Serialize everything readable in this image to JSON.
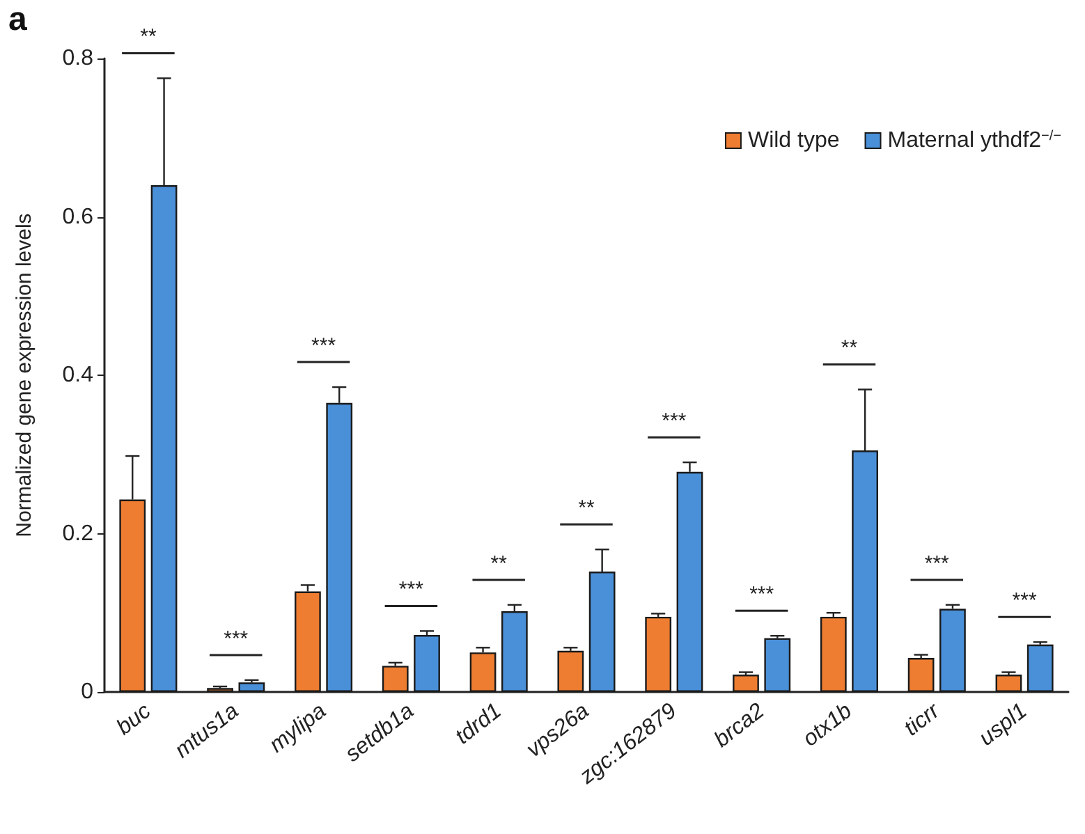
{
  "chart_data": {
    "type": "bar",
    "ylabel": "Normalized gene expression levels",
    "categories": [
      "buc",
      "mtus1a",
      "mylipa",
      "setdb1a",
      "tdrd1",
      "vps26a",
      "zgc:162879",
      "brca2",
      "otx1b",
      "ticrr",
      "uspl1"
    ],
    "series": [
      {
        "name": "Wild type",
        "color": "#ee7d31",
        "values": [
          0.243,
          0.005,
          0.127,
          0.033,
          0.05,
          0.052,
          0.095,
          0.022,
          0.095,
          0.043,
          0.022
        ],
        "errors": [
          0.055,
          0.002,
          0.008,
          0.004,
          0.006,
          0.004,
          0.004,
          0.003,
          0.005,
          0.004,
          0.003
        ]
      },
      {
        "name": "Maternal ythdf2$^{−/−}$",
        "color": "#4a90d9",
        "values": [
          0.64,
          0.012,
          0.365,
          0.072,
          0.102,
          0.152,
          0.278,
          0.068,
          0.305,
          0.105,
          0.06
        ],
        "errors": [
          0.135,
          0.003,
          0.02,
          0.005,
          0.008,
          0.028,
          0.012,
          0.003,
          0.077,
          0.005,
          0.003
        ]
      }
    ],
    "ylim": [
      0,
      0.8
    ],
    "yticks": [
      0,
      0.2,
      0.4,
      0.6,
      0.8
    ],
    "grid": false,
    "legend": "top right",
    "annotations": [
      "**",
      "***",
      "***",
      "***",
      "**",
      "**",
      "***",
      "***",
      "**",
      "***",
      "***",
      "a"
    ]
  }
}
